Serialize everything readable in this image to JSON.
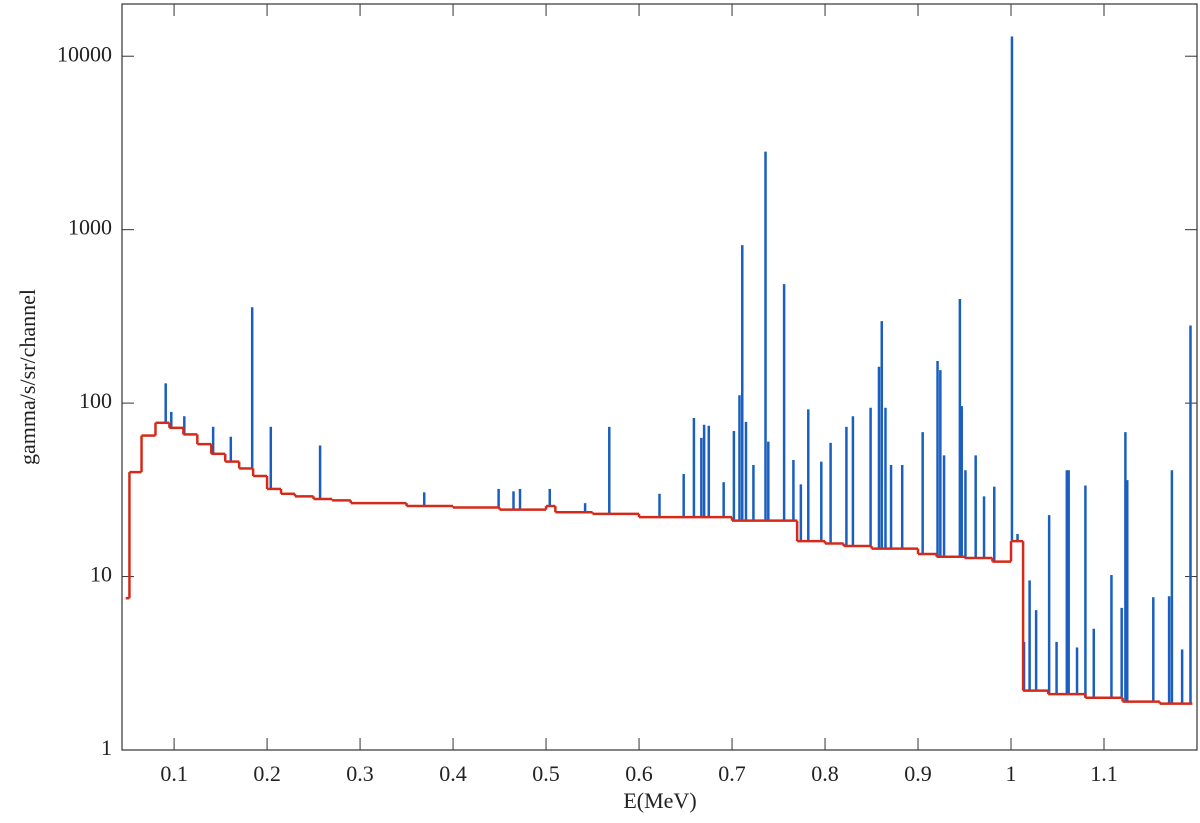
{
  "chart_data": {
    "type": "histogram",
    "xlabel": "E(MeV)",
    "ylabel": "gamma/s/sr/channel",
    "xlim": [
      0.044,
      1.2
    ],
    "ylim": [
      1,
      20000
    ],
    "xticks": [
      0.1,
      0.2,
      0.3,
      0.4,
      0.5,
      0.6,
      0.7,
      0.8,
      0.9,
      1,
      1.1
    ],
    "yticks": [
      1,
      10,
      100,
      1000,
      10000
    ],
    "ylog": true,
    "series": [
      {
        "color": "#1a5fbf",
        "x": [
          0.091,
          0.097,
          0.111,
          0.142,
          0.161,
          0.184,
          0.204,
          0.257,
          0.369,
          0.449,
          0.465,
          0.472,
          0.504,
          0.542,
          0.568,
          0.622,
          0.648,
          0.659,
          0.667,
          0.67,
          0.675,
          0.691,
          0.702,
          0.708,
          0.711,
          0.715,
          0.723,
          0.736,
          0.739,
          0.756,
          0.766,
          0.774,
          0.782,
          0.796,
          0.806,
          0.823,
          0.83,
          0.849,
          0.858,
          0.861,
          0.865,
          0.871,
          0.883,
          0.905,
          0.921,
          0.924,
          0.928,
          0.945,
          0.947,
          0.951,
          0.962,
          0.971,
          0.982,
          1.001,
          1.007,
          1.014,
          1.02,
          1.027,
          1.041,
          1.049,
          1.06,
          1.062,
          1.071,
          1.08,
          1.089,
          1.108,
          1.119,
          1.123,
          1.125,
          1.153,
          1.17,
          1.173,
          1.184,
          1.193
        ],
        "values": [
          130,
          89,
          84,
          73,
          64,
          357,
          73,
          57,
          30.6,
          32,
          31,
          32,
          32,
          26.5,
          73,
          30,
          39,
          82,
          63,
          75,
          74,
          35,
          69,
          111,
          815,
          78,
          44,
          2820,
          60,
          485,
          47,
          34,
          92,
          46,
          59,
          73,
          84,
          94,
          162,
          297,
          94,
          44,
          44,
          68,
          175,
          155,
          50,
          398,
          96,
          41,
          50,
          29,
          33,
          13000,
          17.6,
          4.2,
          9.5,
          6.4,
          22.6,
          4.2,
          41,
          41,
          3.9,
          33.5,
          5.0,
          10.2,
          6.6,
          68,
          36,
          7.6,
          7.7,
          41,
          3.8,
          280
        ]
      },
      {
        "color": "#d42a1a",
        "bins": [
          0.048,
          0.052,
          0.065,
          0.08,
          0.095,
          0.11,
          0.125,
          0.14,
          0.155,
          0.17,
          0.185,
          0.2,
          0.215,
          0.23,
          0.25,
          0.27,
          0.29,
          0.35,
          0.4,
          0.45,
          0.5,
          0.51,
          0.55,
          0.6,
          0.7,
          0.77,
          0.8,
          0.82,
          0.85,
          0.88,
          0.9,
          0.92,
          0.95,
          0.98,
          1.0,
          1.013,
          1.04,
          1.08,
          1.12,
          1.16,
          1.195
        ],
        "values": [
          7.5,
          40,
          65,
          77,
          72,
          66,
          58,
          51,
          46,
          42,
          38,
          32,
          30,
          29,
          28,
          27.5,
          26.5,
          25.5,
          25,
          24.3,
          25.5,
          23.5,
          23,
          22,
          21,
          16,
          15.5,
          15,
          14.5,
          14.5,
          13.5,
          13,
          12.8,
          12.2,
          16,
          2.2,
          2.1,
          2.0,
          1.9,
          1.85
        ]
      }
    ]
  }
}
